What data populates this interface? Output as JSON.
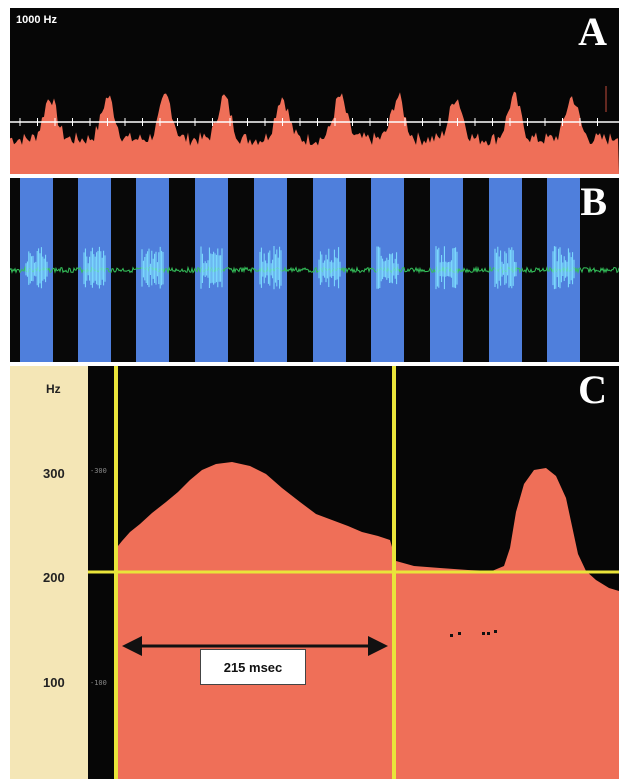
{
  "panel_a": {
    "letter": "A",
    "freq_label": "1000 Hz"
  },
  "panel_b": {
    "letter": "B"
  },
  "panel_c": {
    "letter": "C",
    "axis_title": "Hz",
    "ticks": [
      "300",
      "200",
      "100"
    ],
    "inner_ticks": [
      "-300",
      "-100"
    ],
    "duration_label": "215 msec"
  },
  "colors": {
    "spectrum_red": "#ef6f58",
    "bar_blue": "#4f7fdc",
    "waveform_green": "#34c15a",
    "waveform_cyan": "#7fe0ff",
    "guide_yellow": "#e9e43a",
    "axis_strip": "#f4e6b6",
    "background": "#060606"
  }
}
